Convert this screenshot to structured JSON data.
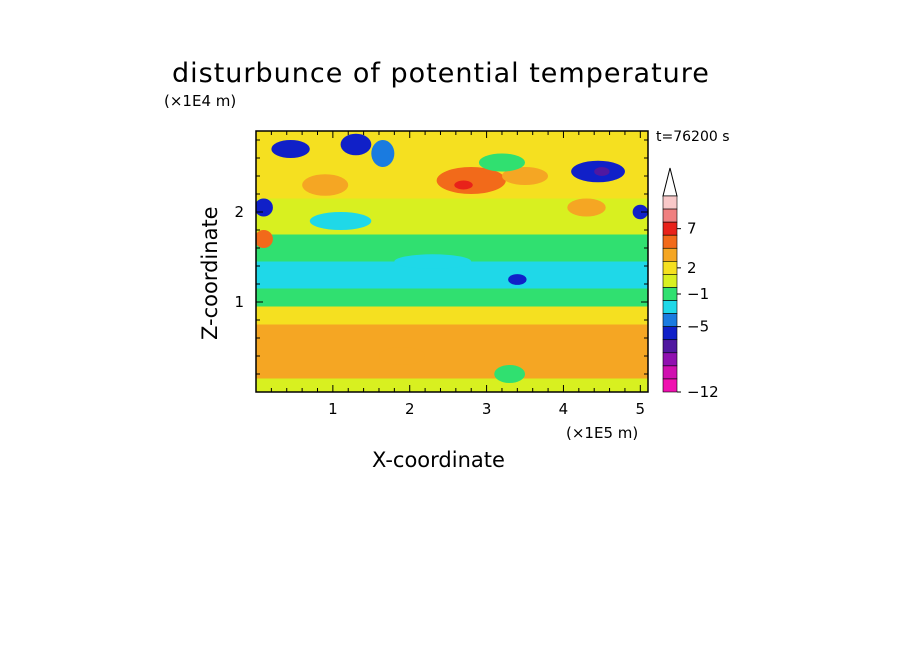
{
  "chart_data": {
    "type": "heatmap",
    "title": "disturbunce of potential temperature",
    "annotation": "t=76200 s",
    "xlabel": "X-coordinate",
    "ylabel": "Z-coordinate",
    "x_unit": "(×1E5 m)",
    "y_unit": "(×1E4 m)",
    "xlim": [
      0,
      5.1
    ],
    "ylim": [
      0,
      2.9
    ],
    "x_ticks": [
      "1",
      "2",
      "3",
      "4",
      "5"
    ],
    "y_ticks": [
      "1",
      "2"
    ],
    "colorbar": {
      "labels": [
        "7",
        "2",
        "−1",
        "−5",
        "−12"
      ],
      "extend": "max",
      "colors": [
        "#f8c8c8",
        "#f08080",
        "#e8221a",
        "#f26a1a",
        "#f5a623",
        "#f5e020",
        "#d8f020",
        "#30e070",
        "#1fd8e8",
        "#1a7be0",
        "#1020c8",
        "#5018a0",
        "#9010b0",
        "#d010b0",
        "#f010b0"
      ]
    },
    "bands": [
      {
        "z": [
          0.0,
          0.15
        ],
        "color": "#d8f020"
      },
      {
        "z": [
          0.15,
          0.75
        ],
        "color": "#f5a623"
      },
      {
        "z": [
          0.75,
          0.95
        ],
        "color": "#f5e020"
      },
      {
        "z": [
          0.95,
          1.15
        ],
        "color": "#30e070"
      },
      {
        "z": [
          1.15,
          1.45
        ],
        "color": "#1fd8e8"
      },
      {
        "z": [
          1.45,
          1.75
        ],
        "color": "#30e070"
      },
      {
        "z": [
          1.75,
          2.15
        ],
        "color": "#d8f020"
      },
      {
        "z": [
          2.15,
          2.9
        ],
        "color": "#f5e020"
      }
    ],
    "features": [
      {
        "x": 0.45,
        "z": 2.7,
        "rx": 0.25,
        "rz": 0.1,
        "color": "#1020c8"
      },
      {
        "x": 1.3,
        "z": 2.75,
        "rx": 0.2,
        "rz": 0.12,
        "color": "#1020c8"
      },
      {
        "x": 1.65,
        "z": 2.65,
        "rx": 0.15,
        "rz": 0.15,
        "color": "#1a7be0"
      },
      {
        "x": 4.45,
        "z": 2.45,
        "rx": 0.35,
        "rz": 0.12,
        "color": "#1020c8"
      },
      {
        "x": 4.5,
        "z": 2.45,
        "rx": 0.1,
        "rz": 0.05,
        "color": "#5018a0"
      },
      {
        "x": 0.1,
        "z": 2.05,
        "rx": 0.12,
        "rz": 0.1,
        "color": "#1020c8"
      },
      {
        "x": 5.0,
        "z": 2.0,
        "rx": 0.1,
        "rz": 0.08,
        "color": "#1020c8"
      },
      {
        "x": 3.4,
        "z": 1.25,
        "rx": 0.12,
        "rz": 0.06,
        "color": "#1020c8"
      },
      {
        "x": 2.8,
        "z": 2.35,
        "rx": 0.45,
        "rz": 0.15,
        "color": "#f26a1a"
      },
      {
        "x": 3.5,
        "z": 2.4,
        "rx": 0.3,
        "rz": 0.1,
        "color": "#f5a623"
      },
      {
        "x": 0.1,
        "z": 1.7,
        "rx": 0.12,
        "rz": 0.1,
        "color": "#f26a1a"
      },
      {
        "x": 2.7,
        "z": 2.3,
        "rx": 0.12,
        "rz": 0.05,
        "color": "#e8221a"
      },
      {
        "x": 2.3,
        "z": 1.45,
        "rx": 0.5,
        "rz": 0.08,
        "color": "#1fd8e8"
      },
      {
        "x": 1.1,
        "z": 1.9,
        "rx": 0.4,
        "rz": 0.1,
        "color": "#1fd8e8"
      },
      {
        "x": 3.2,
        "z": 2.55,
        "rx": 0.3,
        "rz": 0.1,
        "color": "#30e070"
      },
      {
        "x": 4.3,
        "z": 2.05,
        "rx": 0.25,
        "rz": 0.1,
        "color": "#f5a623"
      },
      {
        "x": 0.9,
        "z": 2.3,
        "rx": 0.3,
        "rz": 0.12,
        "color": "#f5a623"
      },
      {
        "x": 1.9,
        "z": 0.4,
        "rx": 0.3,
        "rz": 0.1,
        "color": "#f5a623"
      },
      {
        "x": 3.3,
        "z": 0.2,
        "rx": 0.2,
        "rz": 0.1,
        "color": "#30e070"
      }
    ]
  }
}
